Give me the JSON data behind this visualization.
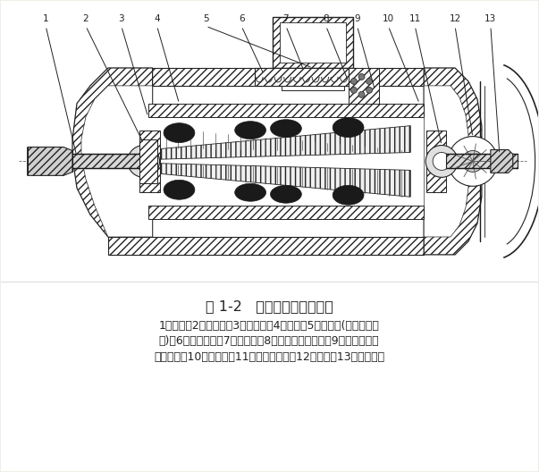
{
  "title": "图 1-2   锥形异步电动机结构",
  "caption_line1": "1－转子；2－前轴承；3－前端盖；4－定子；5－出线盒(或断电限位",
  "caption_line2": "器)；6－压力弹簧；7－支承圈；8－径向推力球轴承；9－后端盖（带",
  "caption_line3": "制动环）；10－后轴承；11－风扇制动轮；12－风罩；13－锁紧螺母",
  "labels_top": [
    "1",
    "2",
    "3",
    "4",
    "5",
    "6",
    "7",
    "8",
    "9",
    "10",
    "11",
    "12",
    "13"
  ],
  "bg_color": "#f0ede6",
  "text_color": "#1a1a1a",
  "figure_width": 6.03,
  "figure_height": 5.28,
  "dpi": 100
}
